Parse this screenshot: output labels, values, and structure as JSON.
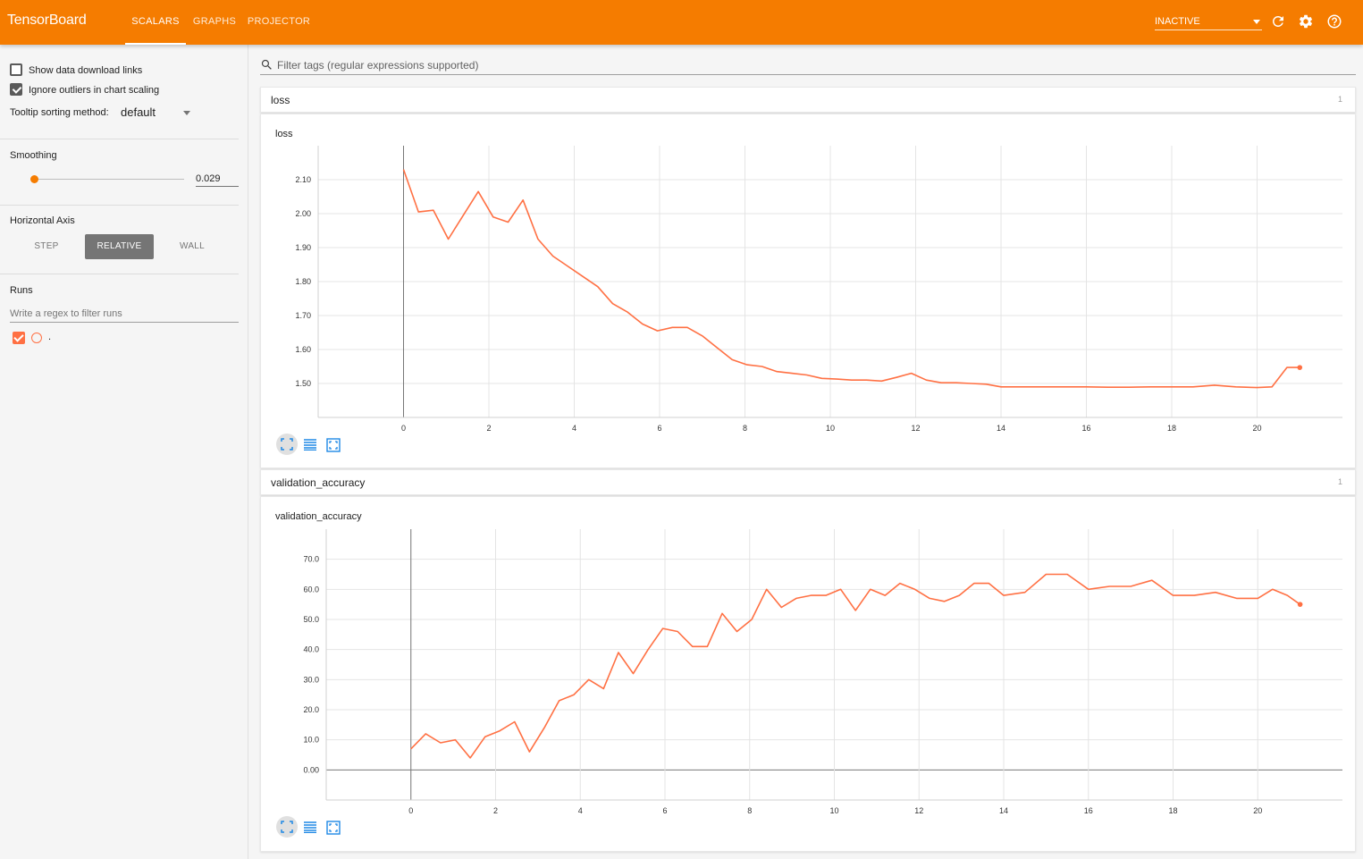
{
  "header": {
    "brand": "TensorBoard",
    "tabs": [
      {
        "label": "SCALARS",
        "active": true
      },
      {
        "label": "GRAPHS",
        "active": false
      },
      {
        "label": "PROJECTOR",
        "active": false
      }
    ],
    "status": "INACTIVE",
    "icons": [
      "refresh-icon",
      "gear-icon",
      "help-icon"
    ]
  },
  "sidebar": {
    "show_download_links": {
      "label": "Show data download links",
      "checked": false
    },
    "ignore_outliers": {
      "label": "Ignore outliers in chart scaling",
      "checked": true
    },
    "tooltip_sorting": {
      "label": "Tooltip sorting method:",
      "value": "default"
    },
    "smoothing": {
      "title": "Smoothing",
      "value": "0.029"
    },
    "horizontal_axis": {
      "title": "Horizontal Axis",
      "options": [
        {
          "label": "STEP",
          "active": false
        },
        {
          "label": "RELATIVE",
          "active": true
        },
        {
          "label": "WALL",
          "active": false
        }
      ]
    },
    "runs": {
      "title": "Runs",
      "filter_placeholder": "Write a regex to filter runs",
      "items": [
        {
          "label": ".",
          "checked": true,
          "color": "#ff7043"
        }
      ]
    }
  },
  "main": {
    "filter_placeholder": "Filter tags (regular expressions supported)",
    "categories": [
      {
        "title": "loss",
        "count": "1",
        "card_title": "loss"
      },
      {
        "title": "validation_accuracy",
        "count": "1",
        "card_title": "validation_accuracy"
      }
    ]
  },
  "colors": {
    "accent": "#f57c00",
    "series": "#ff7043"
  },
  "chart_data": [
    {
      "type": "line",
      "title": "loss",
      "xlabel": "",
      "ylabel": "",
      "xlim": [
        -2,
        22
      ],
      "ylim": [
        1.4,
        2.2
      ],
      "x_ticks": [
        "0",
        "2",
        "4",
        "6",
        "8",
        "10",
        "12",
        "14",
        "16",
        "18",
        "20"
      ],
      "y_ticks": [
        "1.50",
        "1.60",
        "1.70",
        "1.80",
        "1.90",
        "2.00",
        "2.10"
      ],
      "series": [
        {
          "x": [
            0,
            0.35,
            0.7,
            1.05,
            1.4,
            1.75,
            2.1,
            2.45,
            2.8,
            3.15,
            3.5,
            3.85,
            4.2,
            4.55,
            4.9,
            5.25,
            5.6,
            5.95,
            6.3,
            6.65,
            7.0,
            7.35,
            7.7,
            8.05,
            8.4,
            8.75,
            9.1,
            9.45,
            9.8,
            10.15,
            10.5,
            10.85,
            11.2,
            11.55,
            11.9,
            12.25,
            12.6,
            12.95,
            13.3,
            13.65,
            14.0,
            14.5,
            15.0,
            15.5,
            16.0,
            16.5,
            17.0,
            17.5,
            18.0,
            18.5,
            19.0,
            19.5,
            20.0,
            20.35,
            20.7,
            21.0
          ],
          "y": [
            2.13,
            2.005,
            2.01,
            1.925,
            1.995,
            2.065,
            1.99,
            1.975,
            2.04,
            1.925,
            1.875,
            1.845,
            1.815,
            1.785,
            1.735,
            1.71,
            1.675,
            1.655,
            1.665,
            1.665,
            1.64,
            1.605,
            1.57,
            1.555,
            1.55,
            1.535,
            1.53,
            1.525,
            1.515,
            1.513,
            1.51,
            1.51,
            1.507,
            1.518,
            1.53,
            1.51,
            1.502,
            1.502,
            1.5,
            1.498,
            1.49,
            1.49,
            1.49,
            1.49,
            1.49,
            1.489,
            1.489,
            1.49,
            1.49,
            1.49,
            1.495,
            1.49,
            1.488,
            1.49,
            1.547,
            1.547
          ]
        }
      ]
    },
    {
      "type": "line",
      "title": "validation_accuracy",
      "xlabel": "",
      "ylabel": "",
      "xlim": [
        -2,
        22
      ],
      "ylim": [
        -10,
        80
      ],
      "x_ticks": [
        "0",
        "2",
        "4",
        "6",
        "8",
        "10",
        "12",
        "14",
        "16",
        "18",
        "20"
      ],
      "y_ticks": [
        "0.00",
        "10.0",
        "20.0",
        "30.0",
        "40.0",
        "50.0",
        "60.0",
        "70.0"
      ],
      "series": [
        {
          "x": [
            0,
            0.35,
            0.7,
            1.05,
            1.4,
            1.75,
            2.1,
            2.45,
            2.8,
            3.15,
            3.5,
            3.85,
            4.2,
            4.55,
            4.9,
            5.25,
            5.6,
            5.95,
            6.3,
            6.65,
            7.0,
            7.35,
            7.7,
            8.05,
            8.4,
            8.75,
            9.1,
            9.45,
            9.8,
            10.15,
            10.5,
            10.85,
            11.2,
            11.55,
            11.9,
            12.25,
            12.6,
            12.95,
            13.3,
            13.65,
            14.0,
            14.5,
            15.0,
            15.5,
            16.0,
            16.5,
            17.0,
            17.5,
            18.0,
            18.5,
            19.0,
            19.5,
            20.0,
            20.35,
            20.7,
            21.0
          ],
          "y": [
            7,
            12,
            9,
            10,
            4,
            11,
            13,
            16,
            6,
            14,
            23,
            25,
            30,
            27,
            39,
            32,
            40,
            47,
            46,
            41,
            41,
            52,
            46,
            50,
            60,
            54,
            57,
            58,
            58,
            60,
            53,
            60,
            58,
            62,
            60,
            57,
            56,
            58,
            62,
            62,
            58,
            59,
            65,
            65,
            60,
            61,
            61,
            63,
            58,
            58,
            59,
            57,
            57,
            60,
            58,
            55
          ]
        }
      ]
    }
  ]
}
